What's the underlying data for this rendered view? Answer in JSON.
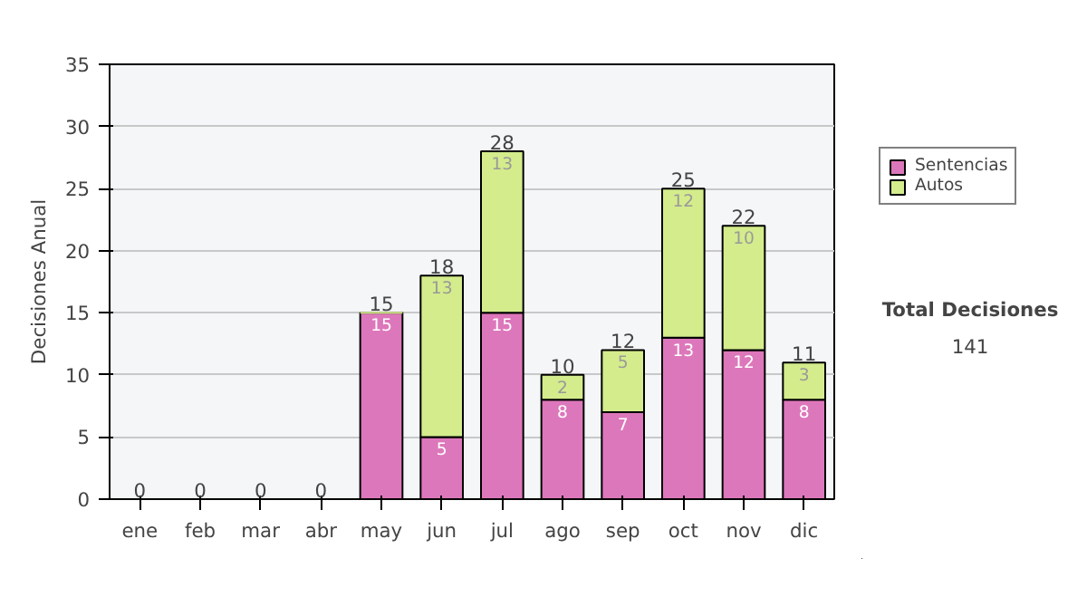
{
  "chart_data": {
    "type": "bar",
    "stacked": true,
    "ylabel": "Decisiones Anual",
    "categories": [
      "ene",
      "feb",
      "mar",
      "abr",
      "may",
      "jun",
      "jul",
      "ago",
      "sep",
      "oct",
      "nov",
      "dic"
    ],
    "series": [
      {
        "name": "Sentencias",
        "color": "#dd77bb",
        "values": [
          0,
          0,
          0,
          0,
          15,
          5,
          15,
          8,
          7,
          13,
          12,
          8
        ],
        "value_labels": [
          null,
          null,
          null,
          null,
          "15",
          "5",
          "15",
          "8",
          "7",
          "13",
          "12",
          "8"
        ]
      },
      {
        "name": "Autos",
        "color": "#d4ec8c",
        "values": [
          0,
          0,
          0,
          0,
          0,
          13,
          13,
          2,
          5,
          12,
          10,
          3
        ],
        "value_labels": [
          null,
          null,
          null,
          null,
          null,
          "13",
          "13",
          "2",
          "5",
          "12",
          "10",
          "3"
        ]
      }
    ],
    "totals": [
      "0",
      "0",
      "0",
      "0",
      "15",
      "18",
      "28",
      "10",
      "12",
      "25",
      "22",
      "11"
    ],
    "ylim": [
      0,
      35
    ],
    "yticks": [
      0,
      5,
      10,
      15,
      20,
      25,
      30,
      35
    ],
    "grid": "y",
    "legend": "right",
    "annotations": [
      "Total Decisiones",
      "141"
    ]
  }
}
